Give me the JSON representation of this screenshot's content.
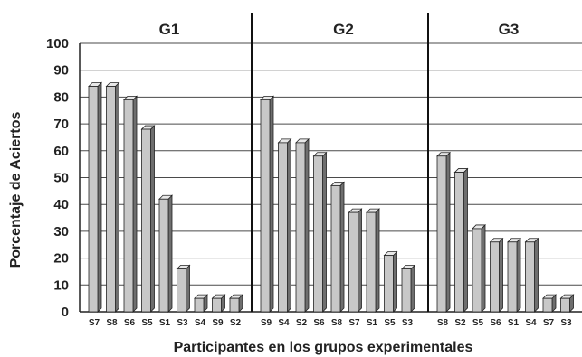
{
  "chart_data": {
    "type": "bar",
    "xlabel": "Participantes en los grupos experimentales",
    "ylabel": "Porcentaje de Aciertos",
    "ylim": [
      0,
      100
    ],
    "yticks": [
      0,
      10,
      20,
      30,
      40,
      50,
      60,
      70,
      80,
      90,
      100
    ],
    "grid": true,
    "bar_color": "#c8c8c8",
    "groups": [
      {
        "name": "G1",
        "categories": [
          "S7",
          "S8",
          "S6",
          "S5",
          "S1",
          "S3",
          "S4",
          "S9",
          "S2"
        ],
        "values": [
          84,
          84,
          79,
          68,
          42,
          16,
          5,
          5,
          5
        ]
      },
      {
        "name": "G2",
        "categories": [
          "S9",
          "S4",
          "S2",
          "S6",
          "S8",
          "S7",
          "S1",
          "S5",
          "S3"
        ],
        "values": [
          79,
          63,
          63,
          58,
          47,
          37,
          37,
          21,
          16
        ]
      },
      {
        "name": "G3",
        "categories": [
          "S8",
          "S2",
          "S5",
          "S6",
          "S1",
          "S4",
          "S7",
          "S3"
        ],
        "values": [
          58,
          52,
          31,
          26,
          26,
          26,
          5,
          5
        ]
      }
    ]
  }
}
